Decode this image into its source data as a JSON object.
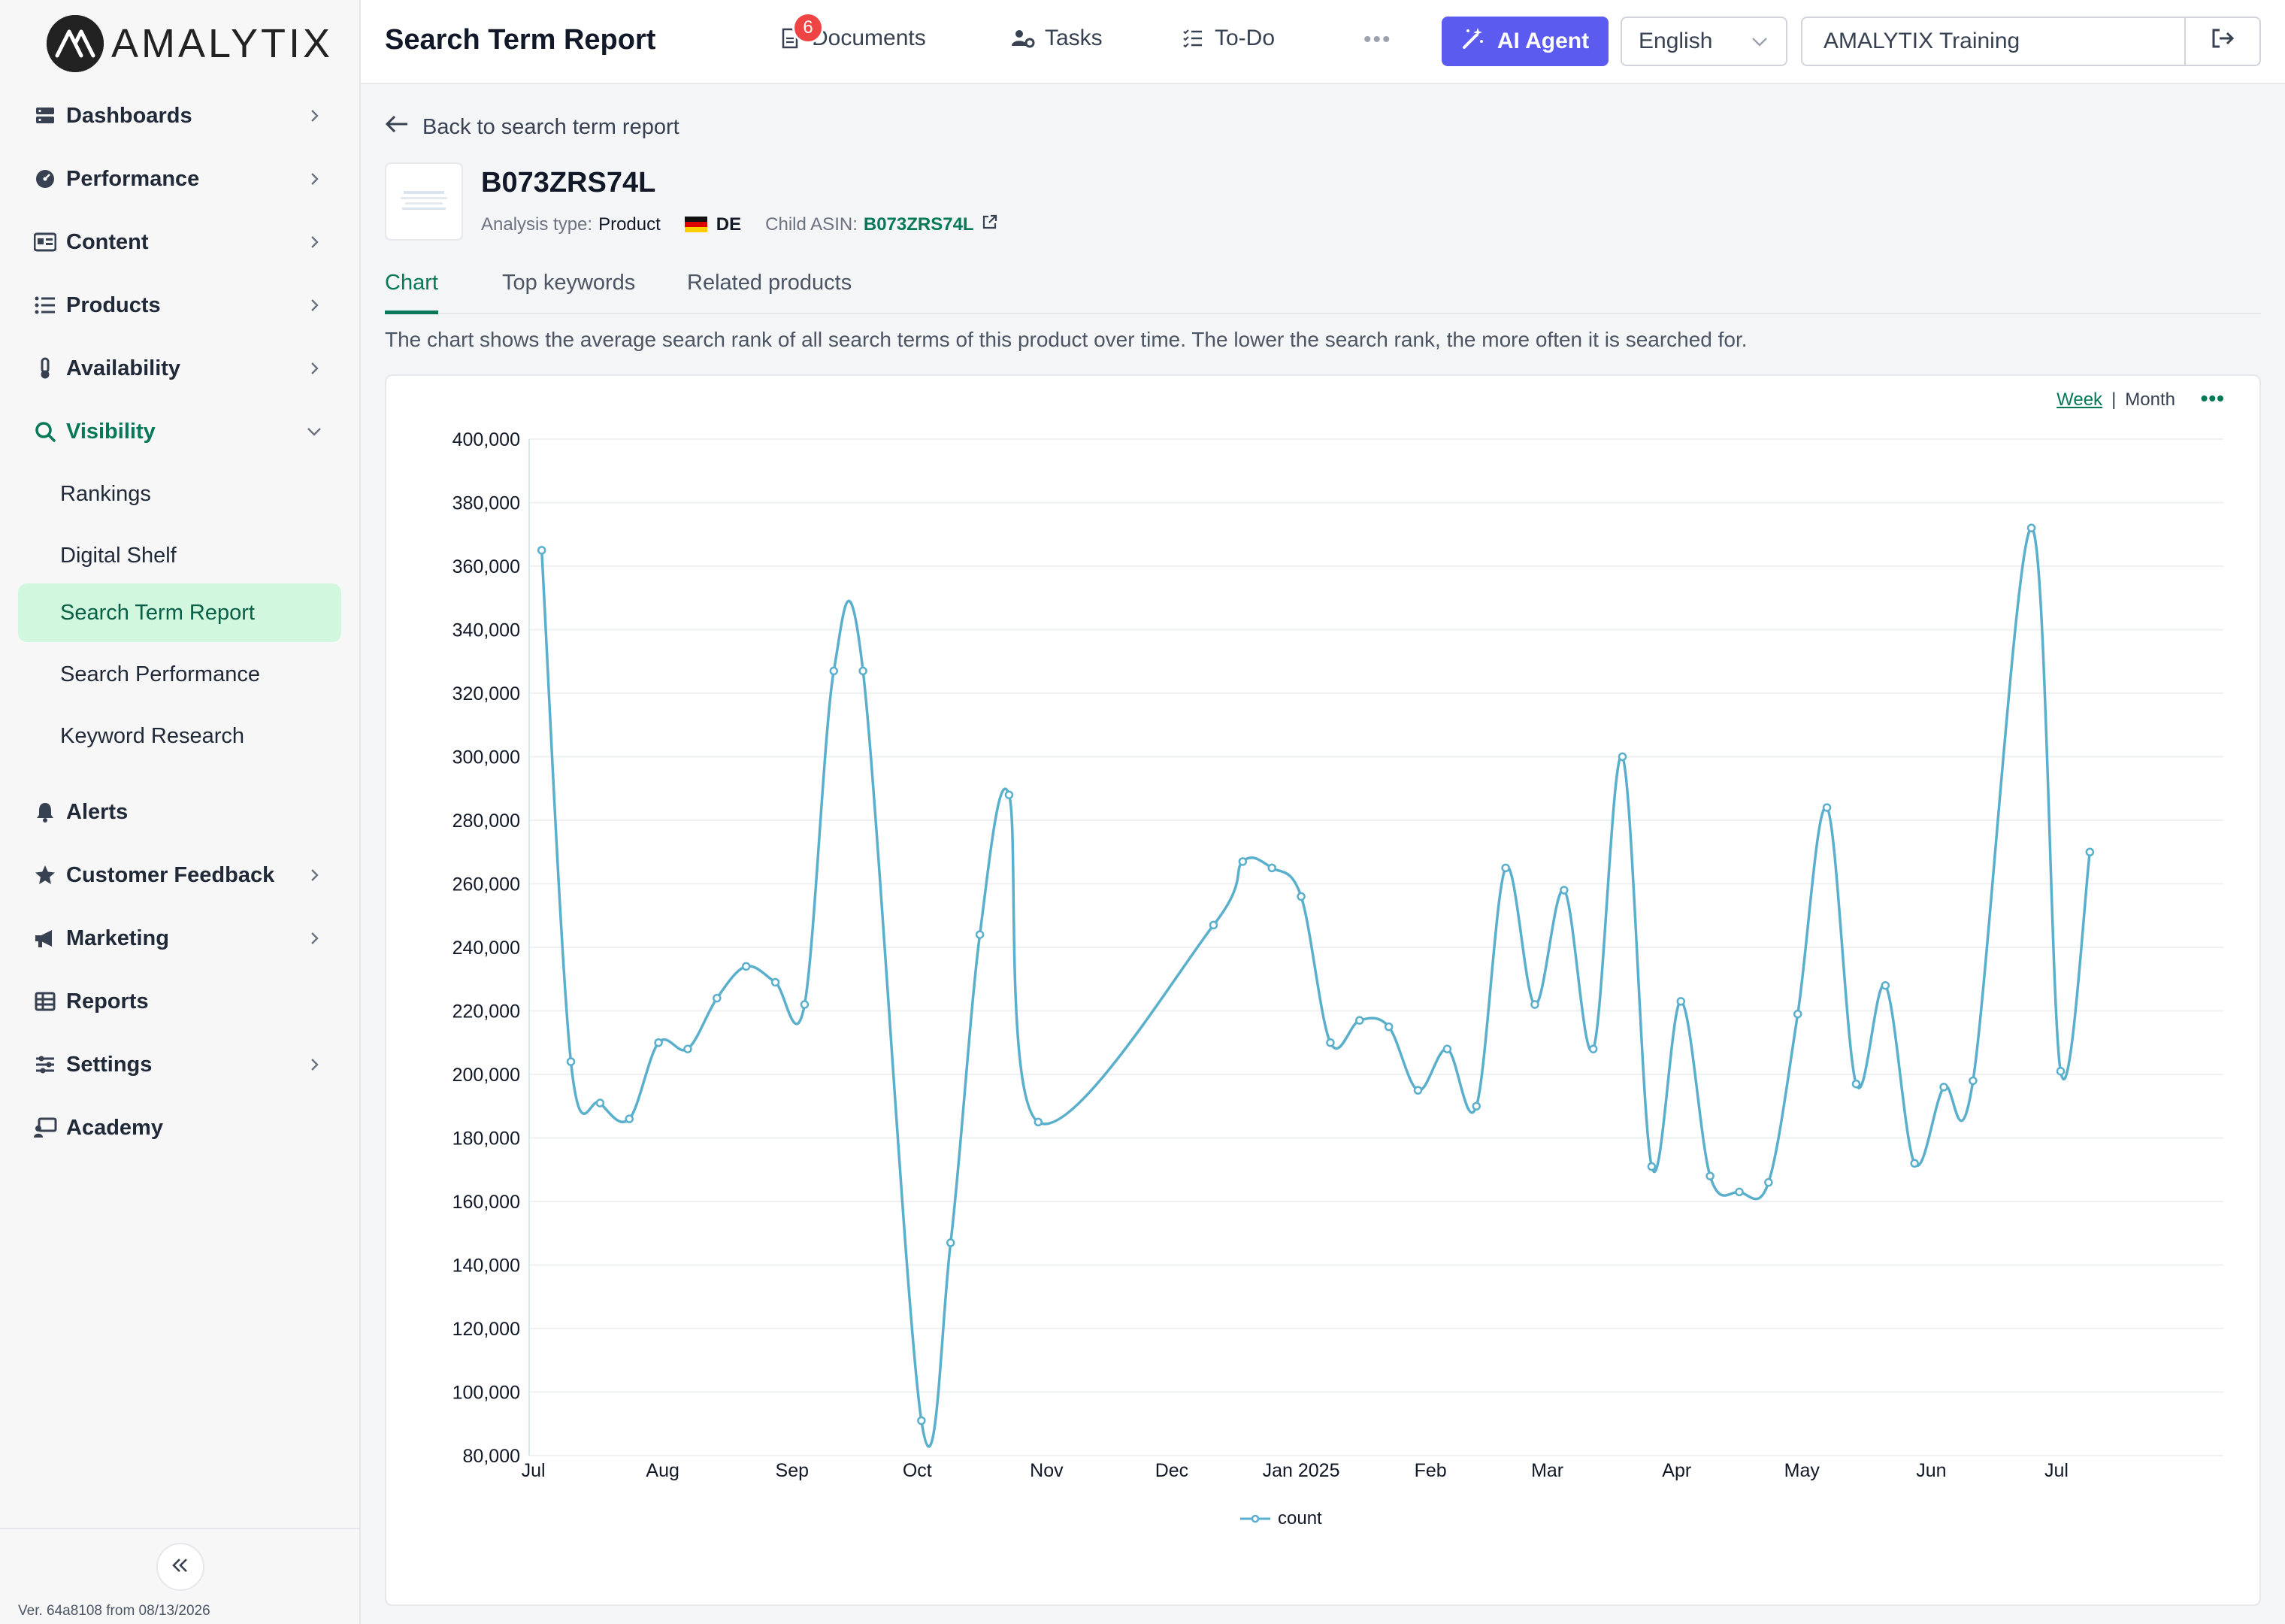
{
  "brand": {
    "logo_text": "AMALYTIX"
  },
  "sidebar": {
    "items": [
      {
        "label": "Dashboards",
        "icon": "dashboard-icon",
        "chevron": true
      },
      {
        "label": "Performance",
        "icon": "gauge-icon",
        "chevron": true
      },
      {
        "label": "Content",
        "icon": "content-icon",
        "chevron": true
      },
      {
        "label": "Products",
        "icon": "list-icon",
        "chevron": true
      },
      {
        "label": "Availability",
        "icon": "thermometer-icon",
        "chevron": true
      },
      {
        "label": "Visibility",
        "icon": "search-icon",
        "chevron": true,
        "expanded": true
      },
      {
        "label": "Alerts",
        "icon": "bell-icon",
        "chevron": false
      },
      {
        "label": "Customer Feedback",
        "icon": "star-icon",
        "chevron": true
      },
      {
        "label": "Marketing",
        "icon": "megaphone-icon",
        "chevron": true
      },
      {
        "label": "Reports",
        "icon": "table-icon",
        "chevron": false
      },
      {
        "label": "Settings",
        "icon": "sliders-icon",
        "chevron": true
      },
      {
        "label": "Academy",
        "icon": "academy-icon",
        "chevron": false
      }
    ],
    "visibility_sub": [
      {
        "label": "Rankings"
      },
      {
        "label": "Digital Shelf"
      },
      {
        "label": "Search Term Report",
        "active": true
      },
      {
        "label": "Search Performance"
      },
      {
        "label": "Keyword Research"
      }
    ],
    "version": "Ver. 64a8108 from 08/13/2026"
  },
  "header": {
    "title": "Search Term Report",
    "documents_label": "Documents",
    "documents_badge": "6",
    "tasks_label": "Tasks",
    "todo_label": "To-Do",
    "more_label": "•••",
    "ai_label": "AI Agent",
    "language": "English",
    "account": "AMALYTIX Training"
  },
  "main": {
    "back_label": "Back to search term report",
    "asin": "B073ZRS74L",
    "analysis_type_label": "Analysis type:",
    "analysis_type_value": "Product",
    "country": "DE",
    "child_asin_label": "Child ASIN:",
    "child_asin_value": "B073ZRS74L",
    "tabs": [
      {
        "label": "Chart",
        "active": true
      },
      {
        "label": "Top keywords"
      },
      {
        "label": "Related products"
      }
    ],
    "description": "The chart shows the average search rank of all search terms of this product over time. The lower the search rank, the more often it is searched for.",
    "range_week": "Week",
    "range_month": "Month",
    "chart_menu": "•••"
  },
  "colors": {
    "accent": "#047857",
    "series": "#5aafcc",
    "ai_button": "#5b5bf0",
    "badge": "#ef4444"
  },
  "chart_data": {
    "type": "line",
    "title": "",
    "xlabel": "",
    "ylabel": "",
    "ylim": [
      80000,
      400000
    ],
    "yticks": [
      80000,
      100000,
      120000,
      140000,
      160000,
      180000,
      200000,
      220000,
      240000,
      260000,
      280000,
      300000,
      320000,
      340000,
      360000,
      380000,
      400000
    ],
    "ytick_labels": [
      "80,000",
      "100,000",
      "120,000",
      "140,000",
      "160,000",
      "180,000",
      "200,000",
      "220,000",
      "240,000",
      "260,000",
      "280,000",
      "300,000",
      "320,000",
      "340,000",
      "360,000",
      "380,000",
      "400,000"
    ],
    "xlim": [
      "2024-06-30",
      "2025-08-10"
    ],
    "xticks": [
      "2024-07-01",
      "2024-08-01",
      "2024-09-01",
      "2024-10-01",
      "2024-11-01",
      "2024-12-01",
      "2025-01-01",
      "2025-02-01",
      "2025-03-01",
      "2025-04-01",
      "2025-05-01",
      "2025-06-01",
      "2025-07-01"
    ],
    "xtick_labels": [
      "Jul",
      "Aug",
      "Sep",
      "Oct",
      "Nov",
      "Dec",
      "Jan 2025",
      "Feb",
      "Mar",
      "Apr",
      "May",
      "Jun",
      "Jul"
    ],
    "legend": "bottom-center",
    "grid": true,
    "series": [
      {
        "name": "count",
        "color": "#5aafcc",
        "points": [
          [
            "2024-07-03",
            365000
          ],
          [
            "2024-07-10",
            204000
          ],
          [
            "2024-07-17",
            191000
          ],
          [
            "2024-07-24",
            186000
          ],
          [
            "2024-07-31",
            210000
          ],
          [
            "2024-08-07",
            208000
          ],
          [
            "2024-08-14",
            224000
          ],
          [
            "2024-08-21",
            234000
          ],
          [
            "2024-08-28",
            229000
          ],
          [
            "2024-09-04",
            222000
          ],
          [
            "2024-09-11",
            327000
          ],
          [
            "2024-09-18",
            327000
          ],
          [
            "2024-10-02",
            91000
          ],
          [
            "2024-10-09",
            147000
          ],
          [
            "2024-10-16",
            244000
          ],
          [
            "2024-10-23",
            288000
          ],
          [
            "2024-10-30",
            185000
          ],
          [
            "2024-12-11",
            247000
          ],
          [
            "2024-12-18",
            267000
          ],
          [
            "2024-12-25",
            265000
          ],
          [
            "2025-01-01",
            256000
          ],
          [
            "2025-01-08",
            210000
          ],
          [
            "2025-01-15",
            217000
          ],
          [
            "2025-01-22",
            215000
          ],
          [
            "2025-01-29",
            195000
          ],
          [
            "2025-02-05",
            208000
          ],
          [
            "2025-02-12",
            190000
          ],
          [
            "2025-02-19",
            265000
          ],
          [
            "2025-02-26",
            222000
          ],
          [
            "2025-03-05",
            258000
          ],
          [
            "2025-03-12",
            208000
          ],
          [
            "2025-03-19",
            300000
          ],
          [
            "2025-03-26",
            171000
          ],
          [
            "2025-04-02",
            223000
          ],
          [
            "2025-04-09",
            168000
          ],
          [
            "2025-04-16",
            163000
          ],
          [
            "2025-04-23",
            166000
          ],
          [
            "2025-04-30",
            219000
          ],
          [
            "2025-05-07",
            284000
          ],
          [
            "2025-05-14",
            197000
          ],
          [
            "2025-05-21",
            228000
          ],
          [
            "2025-05-28",
            172000
          ],
          [
            "2025-06-04",
            196000
          ],
          [
            "2025-06-11",
            198000
          ],
          [
            "2025-06-25",
            372000
          ],
          [
            "2025-07-02",
            201000
          ],
          [
            "2025-07-09",
            270000
          ]
        ]
      }
    ]
  }
}
